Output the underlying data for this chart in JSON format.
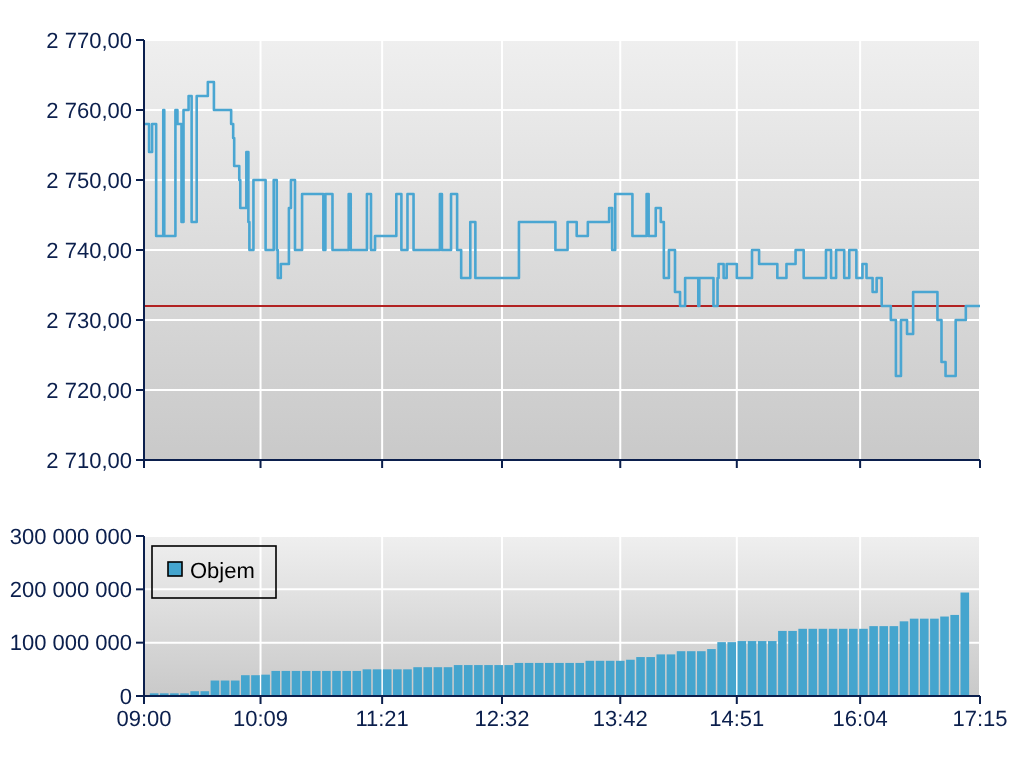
{
  "chart_data": [
    {
      "type": "step",
      "color": "#4aa6d2",
      "x": [
        9.0,
        9.05,
        9.08,
        9.12,
        9.19,
        9.2,
        9.31,
        9.33,
        9.37,
        9.39,
        9.44,
        9.47,
        9.52,
        9.63,
        9.69,
        9.86,
        9.88,
        9.89,
        9.94,
        9.95,
        10.01,
        10.03,
        10.04,
        10.08,
        10.2,
        10.28,
        10.31,
        10.32,
        10.35,
        10.43,
        10.45,
        10.49,
        10.56,
        10.77,
        10.79,
        10.86,
        11.02,
        11.04,
        11.2,
        11.24,
        11.28,
        11.49,
        11.54,
        11.6,
        11.66,
        11.92,
        11.94,
        12.03,
        12.09,
        12.13,
        12.22,
        12.27,
        12.7,
        13.06,
        13.18,
        13.27,
        13.38,
        13.59,
        13.62,
        13.65,
        13.82,
        13.96,
        13.98,
        14.05,
        14.1,
        14.13,
        14.18,
        14.24,
        14.29,
        14.34,
        14.47,
        14.48,
        14.62,
        14.66,
        14.67,
        14.72,
        14.75,
        14.85,
        15.0,
        15.07,
        15.25,
        15.34,
        15.43,
        15.51,
        15.73,
        15.78,
        15.83,
        15.91,
        15.96,
        16.03,
        16.09,
        16.13,
        16.19,
        16.23,
        16.28,
        16.37,
        16.42,
        16.47,
        16.53,
        16.59,
        16.83,
        16.87,
        16.91,
        17.01,
        17.11,
        17.25
      ],
      "values": [
        2758,
        2754,
        2758,
        2742,
        2760,
        2742,
        2760,
        2758,
        2744,
        2760,
        2762,
        2744,
        2762,
        2764,
        2760,
        2758,
        2756,
        2752,
        2750,
        2746,
        2754,
        2744,
        2740,
        2750,
        2740,
        2750,
        2740,
        2736,
        2738,
        2746,
        2750,
        2740,
        2748,
        2740,
        2748,
        2740,
        2748,
        2740,
        2748,
        2740,
        2742,
        2748,
        2740,
        2748,
        2740,
        2748,
        2740,
        2748,
        2740,
        2736,
        2744,
        2736,
        2744,
        2740,
        2744,
        2742,
        2744,
        2746,
        2740,
        2748,
        2742,
        2748,
        2742,
        2746,
        2744,
        2736,
        2740,
        2734,
        2732,
        2736,
        2732,
        2736,
        2732,
        2736,
        2738,
        2736,
        2738,
        2736,
        2740,
        2738,
        2736,
        2738,
        2740,
        2736,
        2740,
        2736,
        2740,
        2736,
        2740,
        2736,
        2738,
        2736,
        2734,
        2736,
        2732,
        2730,
        2722,
        2730,
        2728,
        2734,
        2730,
        2724,
        2722,
        2730,
        2732,
        2732
      ],
      "xlim": [
        9,
        17.25
      ],
      "xticks": [
        {
          "value": 9,
          "label": null
        },
        {
          "value": 10.15,
          "label": null
        },
        {
          "value": 11.35,
          "label": null
        },
        {
          "value": 12.533,
          "label": null
        },
        {
          "value": 13.7,
          "label": null
        },
        {
          "value": 14.85,
          "label": null
        },
        {
          "value": 16.067,
          "label": null
        },
        {
          "value": 17.25,
          "label": null
        }
      ],
      "ylim": [
        2710,
        2770
      ],
      "yticks": [
        {
          "value": 2710,
          "label": "2 710,00"
        },
        {
          "value": 2720,
          "label": "2 720,00"
        },
        {
          "value": 2730,
          "label": "2 730,00"
        },
        {
          "value": 2740,
          "label": "2 740,00"
        },
        {
          "value": 2750,
          "label": "2 750,00"
        },
        {
          "value": 2760,
          "label": "2 760,00"
        },
        {
          "value": 2770,
          "label": "2 770,00"
        }
      ],
      "tick_labels": "y",
      "grid": true,
      "ref_lines": [
        {
          "axis": "y",
          "value": 2732,
          "color": "#b22222"
        }
      ]
    },
    {
      "type": "bar",
      "legend": "top left",
      "grid": true,
      "x": [
        9.1,
        9.2,
        9.3,
        9.4,
        9.5,
        9.6,
        9.7,
        9.8,
        9.9,
        10.0,
        10.1,
        10.2,
        10.3,
        10.4,
        10.5,
        10.6,
        10.7,
        10.8,
        10.9,
        11.0,
        11.1,
        11.2,
        11.3,
        11.4,
        11.5,
        11.6,
        11.7,
        11.8,
        11.9,
        12.0,
        12.1,
        12.2,
        12.3,
        12.4,
        12.5,
        12.6,
        12.7,
        12.8,
        12.9,
        13.0,
        13.1,
        13.2,
        13.3,
        13.4,
        13.5,
        13.6,
        13.7,
        13.8,
        13.9,
        14.0,
        14.1,
        14.2,
        14.3,
        14.4,
        14.5,
        14.6,
        14.7,
        14.8,
        14.9,
        15.0,
        15.1,
        15.2,
        15.3,
        15.4,
        15.5,
        15.6,
        15.7,
        15.8,
        15.9,
        16.0,
        16.1,
        16.2,
        16.3,
        16.4,
        16.5,
        16.6,
        16.7,
        16.8,
        16.9,
        17.0,
        17.1
      ],
      "series": [
        {
          "name": "Objem",
          "color": "#45a5ce",
          "values": [
            5000000,
            5000000,
            5000000,
            5000000,
            9000000,
            9000000,
            29000000,
            29000000,
            29000000,
            39000000,
            39000000,
            40000000,
            47000000,
            47000000,
            47000000,
            47000000,
            47000000,
            47000000,
            47000000,
            47000000,
            47000000,
            50000000,
            50000000,
            50000000,
            50000000,
            50000000,
            54000000,
            54000000,
            54000000,
            54000000,
            58000000,
            58000000,
            58000000,
            58000000,
            58000000,
            58000000,
            62000000,
            62000000,
            62000000,
            62000000,
            62000000,
            62000000,
            62000000,
            66000000,
            66000000,
            66000000,
            66000000,
            68000000,
            73000000,
            73000000,
            78000000,
            78000000,
            84000000,
            84000000,
            84000000,
            88000000,
            101000000,
            101000000,
            103000000,
            103000000,
            103000000,
            103000000,
            122000000,
            122000000,
            126000000,
            126000000,
            126000000,
            126000000,
            126000000,
            126000000,
            126000000,
            131000000,
            131000000,
            131000000,
            140000000,
            145000000,
            145000000,
            145000000,
            149000000,
            152000000,
            194000000
          ]
        }
      ],
      "xlim": [
        9,
        17.25
      ],
      "xticks": [
        {
          "value": 9,
          "label": "09:00"
        },
        {
          "value": 10.15,
          "label": "10:09"
        },
        {
          "value": 11.35,
          "label": "11:21"
        },
        {
          "value": 12.533,
          "label": "12:32"
        },
        {
          "value": 13.7,
          "label": "13:42"
        },
        {
          "value": 14.85,
          "label": "14:51"
        },
        {
          "value": 16.067,
          "label": "16:04"
        },
        {
          "value": 17.25,
          "label": "17:15"
        }
      ],
      "ylim": [
        0,
        300000000
      ],
      "yticks": [
        0,
        {
          "value": 100000000,
          "label": "100 000 000"
        },
        {
          "value": 200000000,
          "label": "200 000 000"
        },
        {
          "value": 300000000,
          "label": "300 000 000"
        }
      ]
    }
  ]
}
